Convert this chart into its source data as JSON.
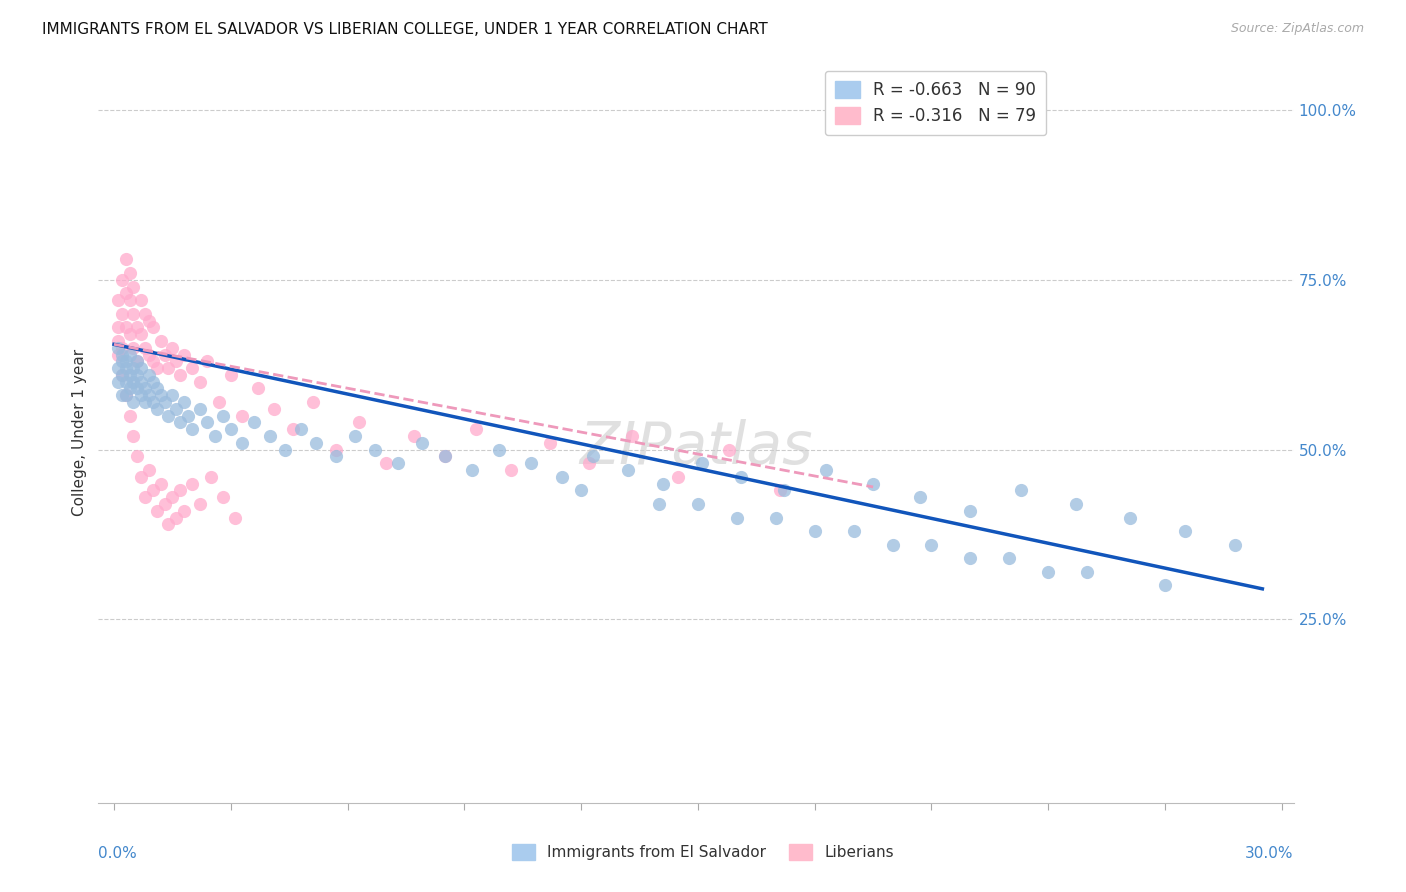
{
  "title": "IMMIGRANTS FROM EL SALVADOR VS LIBERIAN COLLEGE, UNDER 1 YEAR CORRELATION CHART",
  "source": "Source: ZipAtlas.com",
  "ylabel": "College, Under 1 year",
  "watermark": "ZIPatlas",
  "legend1_label": "R = -0.663   N = 90",
  "legend2_label": "R = -0.316   N = 79",
  "legend_bottom_label1": "Immigrants from El Salvador",
  "legend_bottom_label2": "Liberians",
  "blue_scatter_color": "#99BBDD",
  "pink_scatter_color": "#FFAACC",
  "blue_line_color": "#1155BB",
  "pink_line_color": "#EE99BB",
  "axis_label_color": "#4488CC",
  "text_color": "#333333",
  "grid_color": "#CCCCCC",
  "source_color": "#AAAAAA",
  "xlim": [
    0.0,
    0.3
  ],
  "ylim": [
    0.0,
    1.0
  ],
  "blue_x": [
    0.001,
    0.001,
    0.001,
    0.002,
    0.002,
    0.002,
    0.002,
    0.003,
    0.003,
    0.003,
    0.003,
    0.004,
    0.004,
    0.004,
    0.005,
    0.005,
    0.005,
    0.006,
    0.006,
    0.006,
    0.007,
    0.007,
    0.007,
    0.008,
    0.008,
    0.009,
    0.009,
    0.01,
    0.01,
    0.011,
    0.011,
    0.012,
    0.013,
    0.014,
    0.015,
    0.016,
    0.017,
    0.018,
    0.019,
    0.02,
    0.022,
    0.024,
    0.026,
    0.028,
    0.03,
    0.033,
    0.036,
    0.04,
    0.044,
    0.048,
    0.052,
    0.057,
    0.062,
    0.067,
    0.073,
    0.079,
    0.085,
    0.092,
    0.099,
    0.107,
    0.115,
    0.123,
    0.132,
    0.141,
    0.151,
    0.161,
    0.172,
    0.183,
    0.195,
    0.207,
    0.22,
    0.233,
    0.247,
    0.261,
    0.275,
    0.288,
    0.15,
    0.17,
    0.19,
    0.21,
    0.23,
    0.25,
    0.27,
    0.12,
    0.14,
    0.16,
    0.18,
    0.2,
    0.22,
    0.24
  ],
  "blue_y": [
    0.65,
    0.62,
    0.6,
    0.64,
    0.61,
    0.63,
    0.58,
    0.62,
    0.6,
    0.63,
    0.58,
    0.61,
    0.64,
    0.59,
    0.62,
    0.6,
    0.57,
    0.61,
    0.59,
    0.63,
    0.6,
    0.58,
    0.62,
    0.59,
    0.57,
    0.61,
    0.58,
    0.6,
    0.57,
    0.59,
    0.56,
    0.58,
    0.57,
    0.55,
    0.58,
    0.56,
    0.54,
    0.57,
    0.55,
    0.53,
    0.56,
    0.54,
    0.52,
    0.55,
    0.53,
    0.51,
    0.54,
    0.52,
    0.5,
    0.53,
    0.51,
    0.49,
    0.52,
    0.5,
    0.48,
    0.51,
    0.49,
    0.47,
    0.5,
    0.48,
    0.46,
    0.49,
    0.47,
    0.45,
    0.48,
    0.46,
    0.44,
    0.47,
    0.45,
    0.43,
    0.41,
    0.44,
    0.42,
    0.4,
    0.38,
    0.36,
    0.42,
    0.4,
    0.38,
    0.36,
    0.34,
    0.32,
    0.3,
    0.44,
    0.42,
    0.4,
    0.38,
    0.36,
    0.34,
    0.32
  ],
  "pink_x": [
    0.001,
    0.001,
    0.001,
    0.002,
    0.002,
    0.002,
    0.003,
    0.003,
    0.003,
    0.004,
    0.004,
    0.004,
    0.005,
    0.005,
    0.005,
    0.006,
    0.006,
    0.007,
    0.007,
    0.008,
    0.008,
    0.009,
    0.009,
    0.01,
    0.01,
    0.011,
    0.012,
    0.013,
    0.014,
    0.015,
    0.016,
    0.017,
    0.018,
    0.02,
    0.022,
    0.024,
    0.027,
    0.03,
    0.033,
    0.037,
    0.041,
    0.046,
    0.051,
    0.057,
    0.063,
    0.07,
    0.077,
    0.085,
    0.093,
    0.102,
    0.112,
    0.122,
    0.133,
    0.145,
    0.158,
    0.171,
    0.001,
    0.002,
    0.003,
    0.004,
    0.005,
    0.006,
    0.007,
    0.008,
    0.009,
    0.01,
    0.011,
    0.012,
    0.013,
    0.014,
    0.015,
    0.016,
    0.017,
    0.018,
    0.02,
    0.022,
    0.025,
    0.028,
    0.031
  ],
  "pink_y": [
    0.66,
    0.72,
    0.68,
    0.75,
    0.7,
    0.65,
    0.73,
    0.68,
    0.78,
    0.72,
    0.67,
    0.76,
    0.7,
    0.65,
    0.74,
    0.68,
    0.63,
    0.67,
    0.72,
    0.65,
    0.7,
    0.64,
    0.69,
    0.63,
    0.68,
    0.62,
    0.66,
    0.64,
    0.62,
    0.65,
    0.63,
    0.61,
    0.64,
    0.62,
    0.6,
    0.63,
    0.57,
    0.61,
    0.55,
    0.59,
    0.56,
    0.53,
    0.57,
    0.5,
    0.54,
    0.48,
    0.52,
    0.49,
    0.53,
    0.47,
    0.51,
    0.48,
    0.52,
    0.46,
    0.5,
    0.44,
    0.64,
    0.61,
    0.58,
    0.55,
    0.52,
    0.49,
    0.46,
    0.43,
    0.47,
    0.44,
    0.41,
    0.45,
    0.42,
    0.39,
    0.43,
    0.4,
    0.44,
    0.41,
    0.45,
    0.42,
    0.46,
    0.43,
    0.4
  ],
  "blue_trendline_x": [
    0.0,
    0.295
  ],
  "blue_trendline_y": [
    0.655,
    0.295
  ],
  "pink_trendline_x": [
    0.0,
    0.195
  ],
  "pink_trendline_y": [
    0.655,
    0.445
  ]
}
